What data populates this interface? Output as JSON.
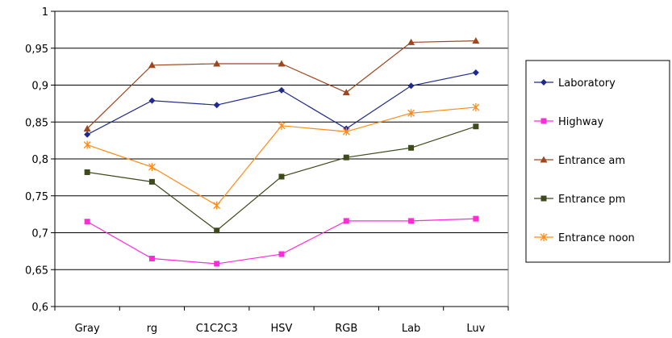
{
  "chart_data": {
    "type": "line",
    "categories": [
      "Gray",
      "rg",
      "C1C2C3",
      "HSV",
      "RGB",
      "Lab",
      "Luv"
    ],
    "ylim": [
      0.6,
      1
    ],
    "yticks": [
      "0,6",
      "0,65",
      "0,7",
      "0,75",
      "0,8",
      "0,85",
      "0,9",
      "0,95",
      "1"
    ],
    "ytick_values": [
      0.6,
      0.65,
      0.7,
      0.75,
      0.8,
      0.85,
      0.9,
      0.95,
      1.0
    ],
    "grid": true,
    "legend_position": "right",
    "series": [
      {
        "name": "Laboratory",
        "color": "#1f2a8c",
        "marker": "diamond",
        "values": [
          0.833,
          0.879,
          0.873,
          0.893,
          0.841,
          0.899,
          0.917
        ]
      },
      {
        "name": "Highway",
        "color": "#ff2bd6",
        "marker": "square",
        "values": [
          0.715,
          0.665,
          0.658,
          0.671,
          0.716,
          0.716,
          0.719
        ]
      },
      {
        "name": "Entrance am",
        "color": "#a0461e",
        "marker": "triangle",
        "values": [
          0.841,
          0.927,
          0.929,
          0.929,
          0.89,
          0.958,
          0.96
        ]
      },
      {
        "name": "Entrance pm",
        "color": "#3d4a1a",
        "marker": "square",
        "values": [
          0.782,
          0.769,
          0.703,
          0.776,
          0.802,
          0.815,
          0.844
        ]
      },
      {
        "name": "Entrance noon",
        "color": "#ff8c1a",
        "marker": "star",
        "values": [
          0.819,
          0.789,
          0.737,
          0.845,
          0.837,
          0.862,
          0.87
        ]
      }
    ]
  }
}
